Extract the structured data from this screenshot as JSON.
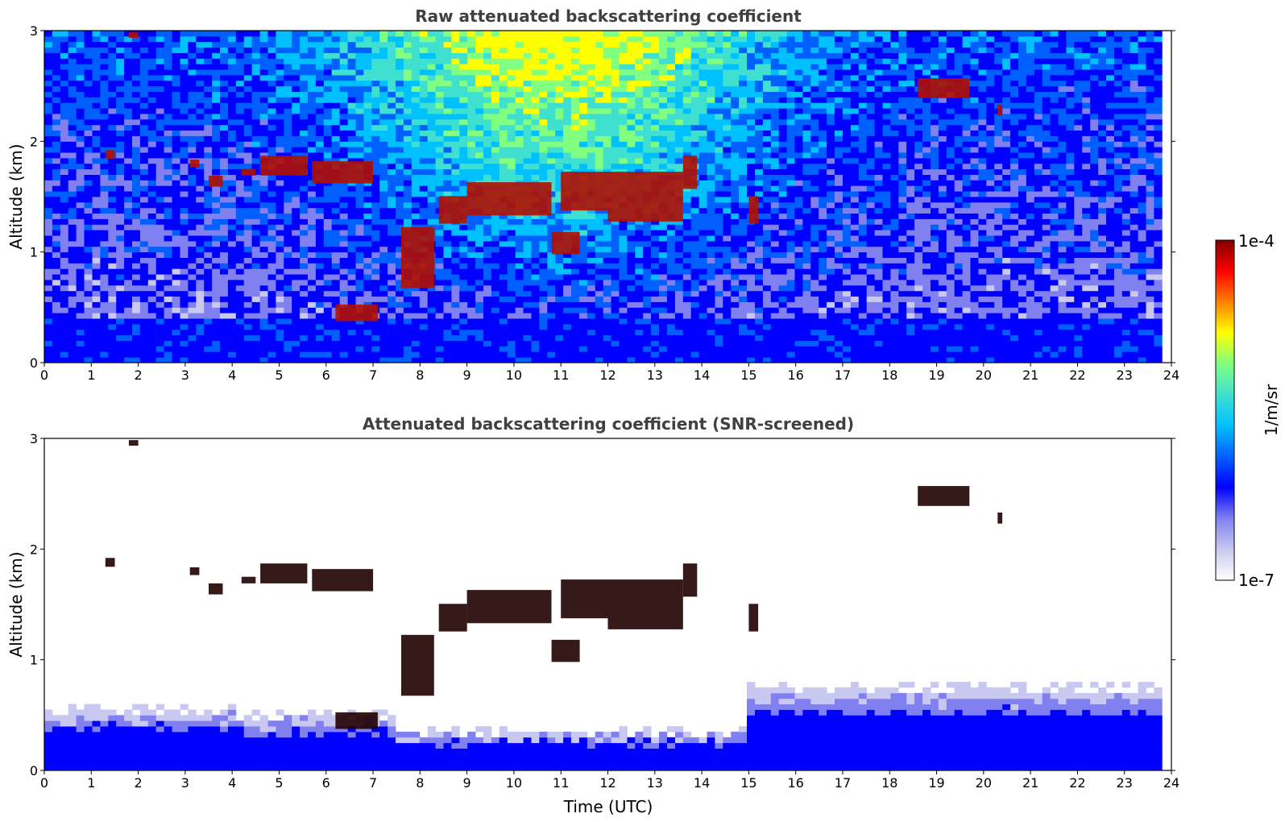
{
  "chart_data": [
    {
      "type": "heatmap",
      "title": "Raw attenuated backscattering coefficient",
      "xlabel": "",
      "ylabel": "Altitude (km)",
      "xlim": [
        0,
        24
      ],
      "ylim": [
        0,
        3
      ],
      "xticks": [
        "0",
        "1",
        "2",
        "3",
        "4",
        "5",
        "6",
        "7",
        "8",
        "9",
        "10",
        "11",
        "12",
        "13",
        "14",
        "15",
        "16",
        "17",
        "18",
        "19",
        "20",
        "21",
        "22",
        "23",
        "24"
      ],
      "yticks": [
        "0",
        "1",
        "2",
        "3"
      ],
      "screened": false,
      "cloud_layers": [
        {
          "x0": 1.3,
          "x1": 1.5,
          "y": 1.88,
          "thickness": 0.08
        },
        {
          "x0": 1.8,
          "x1": 2.0,
          "y": 2.96,
          "thickness": 0.05
        },
        {
          "x0": 3.1,
          "x1": 3.3,
          "y": 1.8,
          "thickness": 0.07
        },
        {
          "x0": 3.5,
          "x1": 3.8,
          "y": 1.64,
          "thickness": 0.1
        },
        {
          "x0": 4.2,
          "x1": 4.5,
          "y": 1.72,
          "thickness": 0.06
        },
        {
          "x0": 4.6,
          "x1": 5.6,
          "y": 1.78,
          "thickness": 0.18
        },
        {
          "x0": 5.7,
          "x1": 7.0,
          "y": 1.72,
          "thickness": 0.2
        },
        {
          "x0": 7.6,
          "x1": 8.3,
          "y": 0.95,
          "thickness": 0.55
        },
        {
          "x0": 8.4,
          "x1": 9.0,
          "y": 1.38,
          "thickness": 0.25
        },
        {
          "x0": 9.0,
          "x1": 10.8,
          "y": 1.48,
          "thickness": 0.3
        },
        {
          "x0": 10.8,
          "x1": 11.4,
          "y": 1.08,
          "thickness": 0.2
        },
        {
          "x0": 11.0,
          "x1": 12.0,
          "y": 1.55,
          "thickness": 0.35
        },
        {
          "x0": 12.0,
          "x1": 13.6,
          "y": 1.5,
          "thickness": 0.45
        },
        {
          "x0": 13.6,
          "x1": 13.9,
          "y": 1.72,
          "thickness": 0.3
        },
        {
          "x0": 15.0,
          "x1": 15.2,
          "y": 1.38,
          "thickness": 0.25
        },
        {
          "x0": 18.6,
          "x1": 19.7,
          "y": 2.48,
          "thickness": 0.18
        },
        {
          "x0": 20.3,
          "x1": 20.4,
          "y": 2.28,
          "thickness": 0.1
        },
        {
          "x0": 6.2,
          "x1": 7.1,
          "y": 0.45,
          "thickness": 0.15
        }
      ]
    },
    {
      "type": "heatmap",
      "title": "Attenuated backscattering coefficient (SNR-screened)",
      "xlabel": "Time (UTC)",
      "ylabel": "Altitude (km)",
      "xlim": [
        0,
        24
      ],
      "ylim": [
        0,
        3
      ],
      "xticks": [
        "0",
        "1",
        "2",
        "3",
        "4",
        "5",
        "6",
        "7",
        "8",
        "9",
        "10",
        "11",
        "12",
        "13",
        "14",
        "15",
        "16",
        "17",
        "18",
        "19",
        "20",
        "21",
        "22",
        "23",
        "24"
      ],
      "yticks": [
        "0",
        "1",
        "2",
        "3"
      ],
      "screened": true,
      "cloud_layers": [
        {
          "x0": 1.3,
          "x1": 1.5,
          "y": 1.88,
          "thickness": 0.08
        },
        {
          "x0": 1.8,
          "x1": 2.0,
          "y": 2.96,
          "thickness": 0.05
        },
        {
          "x0": 3.1,
          "x1": 3.3,
          "y": 1.8,
          "thickness": 0.07
        },
        {
          "x0": 3.5,
          "x1": 3.8,
          "y": 1.64,
          "thickness": 0.1
        },
        {
          "x0": 4.2,
          "x1": 4.5,
          "y": 1.72,
          "thickness": 0.06
        },
        {
          "x0": 4.6,
          "x1": 5.6,
          "y": 1.78,
          "thickness": 0.18
        },
        {
          "x0": 5.7,
          "x1": 7.0,
          "y": 1.72,
          "thickness": 0.2
        },
        {
          "x0": 7.6,
          "x1": 8.3,
          "y": 0.95,
          "thickness": 0.55
        },
        {
          "x0": 8.4,
          "x1": 9.0,
          "y": 1.38,
          "thickness": 0.25
        },
        {
          "x0": 9.0,
          "x1": 10.8,
          "y": 1.48,
          "thickness": 0.3
        },
        {
          "x0": 10.8,
          "x1": 11.4,
          "y": 1.08,
          "thickness": 0.2
        },
        {
          "x0": 11.0,
          "x1": 12.0,
          "y": 1.55,
          "thickness": 0.35
        },
        {
          "x0": 12.0,
          "x1": 13.6,
          "y": 1.5,
          "thickness": 0.45
        },
        {
          "x0": 13.6,
          "x1": 13.9,
          "y": 1.72,
          "thickness": 0.3
        },
        {
          "x0": 15.0,
          "x1": 15.2,
          "y": 1.38,
          "thickness": 0.25
        },
        {
          "x0": 18.6,
          "x1": 19.7,
          "y": 2.48,
          "thickness": 0.18
        },
        {
          "x0": 20.3,
          "x1": 20.4,
          "y": 2.28,
          "thickness": 0.1
        },
        {
          "x0": 6.2,
          "x1": 7.1,
          "y": 0.45,
          "thickness": 0.15
        }
      ]
    }
  ],
  "colorbar": {
    "label": "1/m/sr",
    "max_label": "1e-4",
    "min_label": "1e-7",
    "colormap": [
      "#ffffff",
      "#c8c8f0",
      "#8080f0",
      "#0000ff",
      "#0060ff",
      "#00c0ff",
      "#40e0d0",
      "#80ff80",
      "#ffff00",
      "#ff8000",
      "#ff0000",
      "#800000"
    ]
  }
}
